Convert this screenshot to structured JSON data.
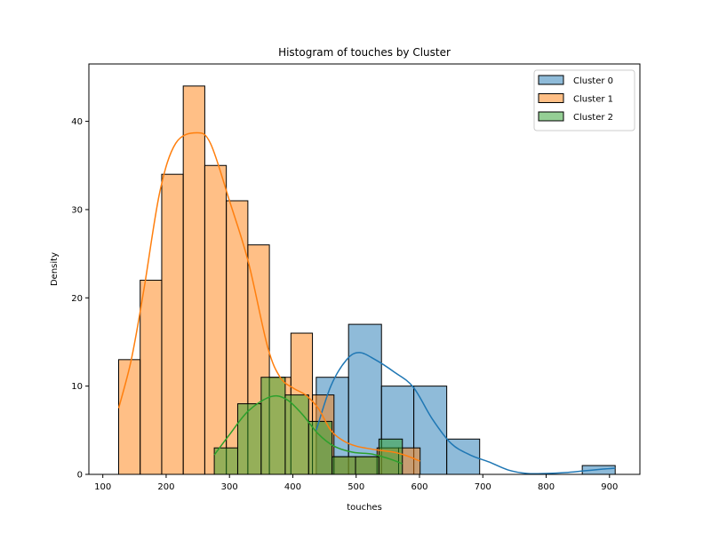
{
  "chart_data": {
    "type": "histogram",
    "title": "Histogram of touches by Cluster",
    "xlabel": "touches",
    "ylabel": "Density",
    "xlim": [
      78,
      948
    ],
    "ylim": [
      0,
      46.5
    ],
    "xticks": [
      100,
      200,
      300,
      400,
      500,
      600,
      700,
      800,
      900
    ],
    "yticks": [
      0,
      10,
      20,
      30,
      40
    ],
    "grid": false,
    "legend_position": "top-right",
    "series": [
      {
        "name": "Cluster 0",
        "color": "#1f77b4",
        "bars": [
          {
            "x0": 437,
            "x1": 488,
            "value": 11
          },
          {
            "x0": 488,
            "x1": 540,
            "value": 17
          },
          {
            "x0": 540,
            "x1": 591,
            "value": 10
          },
          {
            "x0": 591,
            "x1": 643,
            "value": 10
          },
          {
            "x0": 643,
            "x1": 695,
            "value": 4
          },
          {
            "x0": 857,
            "x1": 909,
            "value": 1
          }
        ],
        "kde": [
          [
            437,
            5
          ],
          [
            460,
            10
          ],
          [
            485,
            13
          ],
          [
            505,
            13.8
          ],
          [
            530,
            13
          ],
          [
            560,
            11.6
          ],
          [
            590,
            9.9
          ],
          [
            620,
            6.3
          ],
          [
            650,
            3.5
          ],
          [
            680,
            2.2
          ],
          [
            710,
            1.4
          ],
          [
            740,
            0.5
          ],
          [
            770,
            0.1
          ],
          [
            800,
            0.1
          ],
          [
            830,
            0.2
          ],
          [
            860,
            0.4
          ],
          [
            890,
            0.6
          ],
          [
            909,
            0.7
          ]
        ]
      },
      {
        "name": "Cluster 1",
        "color": "#ff7f0e",
        "bars": [
          {
            "x0": 125,
            "x1": 159,
            "value": 13
          },
          {
            "x0": 159,
            "x1": 193,
            "value": 22
          },
          {
            "x0": 193,
            "x1": 227,
            "value": 34
          },
          {
            "x0": 227,
            "x1": 261,
            "value": 44
          },
          {
            "x0": 261,
            "x1": 295,
            "value": 35
          },
          {
            "x0": 295,
            "x1": 329,
            "value": 31
          },
          {
            "x0": 329,
            "x1": 363,
            "value": 26
          },
          {
            "x0": 363,
            "x1": 397,
            "value": 11
          },
          {
            "x0": 397,
            "x1": 431,
            "value": 16
          },
          {
            "x0": 431,
            "x1": 465,
            "value": 9
          },
          {
            "x0": 465,
            "x1": 499,
            "value": 2
          },
          {
            "x0": 499,
            "x1": 533,
            "value": 2
          },
          {
            "x0": 533,
            "x1": 567,
            "value": 3
          },
          {
            "x0": 567,
            "x1": 601,
            "value": 3
          }
        ],
        "kde": [
          [
            125,
            7.5
          ],
          [
            145,
            13
          ],
          [
            165,
            21
          ],
          [
            190,
            32
          ],
          [
            215,
            37.5
          ],
          [
            248,
            38.7
          ],
          [
            270,
            37.5
          ],
          [
            300,
            31
          ],
          [
            330,
            24
          ],
          [
            360,
            14.5
          ],
          [
            380,
            11
          ],
          [
            400,
            9.8
          ],
          [
            420,
            9
          ],
          [
            440,
            7.5
          ],
          [
            460,
            5
          ],
          [
            480,
            3.8
          ],
          [
            500,
            3.2
          ],
          [
            530,
            2.8
          ],
          [
            560,
            2.5
          ],
          [
            580,
            2.1
          ],
          [
            601,
            1.5
          ]
        ]
      },
      {
        "name": "Cluster 2",
        "color": "#2ca02c",
        "bars": [
          {
            "x0": 276,
            "x1": 313,
            "value": 3
          },
          {
            "x0": 313,
            "x1": 350,
            "value": 8
          },
          {
            "x0": 350,
            "x1": 388,
            "value": 11
          },
          {
            "x0": 388,
            "x1": 425,
            "value": 9
          },
          {
            "x0": 425,
            "x1": 462,
            "value": 6
          },
          {
            "x0": 462,
            "x1": 499,
            "value": 2
          },
          {
            "x0": 499,
            "x1": 536,
            "value": 2
          },
          {
            "x0": 536,
            "x1": 573,
            "value": 4
          }
        ],
        "kde": [
          [
            276,
            2.2
          ],
          [
            300,
            4.5
          ],
          [
            330,
            7.2
          ],
          [
            365,
            8.8
          ],
          [
            390,
            8.5
          ],
          [
            415,
            6.8
          ],
          [
            440,
            4.6
          ],
          [
            465,
            3.2
          ],
          [
            495,
            2.5
          ],
          [
            525,
            2.3
          ],
          [
            555,
            1.7
          ],
          [
            573,
            1.2
          ]
        ]
      }
    ]
  }
}
